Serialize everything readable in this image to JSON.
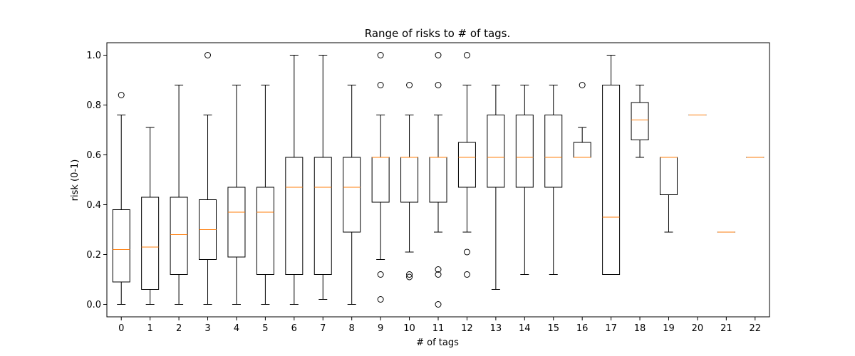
{
  "chart_data": {
    "type": "box",
    "title": "Range of risks to # of tags.",
    "xlabel": "# of tags",
    "ylabel": "risk (0-1)",
    "categories": [
      "0",
      "1",
      "2",
      "3",
      "4",
      "5",
      "6",
      "7",
      "8",
      "9",
      "10",
      "11",
      "12",
      "13",
      "14",
      "15",
      "16",
      "17",
      "18",
      "19",
      "20",
      "21",
      "22"
    ],
    "ylim": [
      -0.05,
      1.05
    ],
    "yticks": [
      "0.0",
      "0.2",
      "0.4",
      "0.6",
      "0.8",
      "1.0"
    ],
    "grid": false,
    "colors": {
      "box": "#000000",
      "median": "#ff7f0e",
      "background": "#ffffff"
    },
    "boxes": [
      {
        "whislo": 0.0,
        "q1": 0.09,
        "med": 0.22,
        "q3": 0.38,
        "whishi": 0.76,
        "fliers": [
          0.84
        ]
      },
      {
        "whislo": 0.0,
        "q1": 0.06,
        "med": 0.23,
        "q3": 0.43,
        "whishi": 0.71,
        "fliers": []
      },
      {
        "whislo": 0.0,
        "q1": 0.12,
        "med": 0.28,
        "q3": 0.43,
        "whishi": 0.88,
        "fliers": []
      },
      {
        "whislo": 0.0,
        "q1": 0.18,
        "med": 0.3,
        "q3": 0.42,
        "whishi": 0.76,
        "fliers": [
          1.0
        ]
      },
      {
        "whislo": 0.0,
        "q1": 0.19,
        "med": 0.37,
        "q3": 0.47,
        "whishi": 0.88,
        "fliers": []
      },
      {
        "whislo": 0.0,
        "q1": 0.12,
        "med": 0.37,
        "q3": 0.47,
        "whishi": 0.88,
        "fliers": []
      },
      {
        "whislo": 0.0,
        "q1": 0.12,
        "med": 0.47,
        "q3": 0.59,
        "whishi": 1.0,
        "fliers": []
      },
      {
        "whislo": 0.02,
        "q1": 0.12,
        "med": 0.47,
        "q3": 0.59,
        "whishi": 1.0,
        "fliers": []
      },
      {
        "whislo": 0.0,
        "q1": 0.29,
        "med": 0.47,
        "q3": 0.59,
        "whishi": 0.88,
        "fliers": []
      },
      {
        "whislo": 0.18,
        "q1": 0.41,
        "med": 0.59,
        "q3": 0.59,
        "whishi": 0.76,
        "fliers": [
          0.02,
          0.12,
          0.88,
          1.0
        ]
      },
      {
        "whislo": 0.21,
        "q1": 0.41,
        "med": 0.59,
        "q3": 0.59,
        "whishi": 0.76,
        "fliers": [
          0.11,
          0.12,
          0.88
        ]
      },
      {
        "whislo": 0.29,
        "q1": 0.41,
        "med": 0.59,
        "q3": 0.59,
        "whishi": 0.76,
        "fliers": [
          0.0,
          0.12,
          0.14,
          0.88,
          1.0
        ]
      },
      {
        "whislo": 0.29,
        "q1": 0.47,
        "med": 0.59,
        "q3": 0.65,
        "whishi": 0.88,
        "fliers": [
          0.12,
          0.21,
          1.0
        ]
      },
      {
        "whislo": 0.06,
        "q1": 0.47,
        "med": 0.59,
        "q3": 0.76,
        "whishi": 0.88,
        "fliers": []
      },
      {
        "whislo": 0.12,
        "q1": 0.47,
        "med": 0.59,
        "q3": 0.76,
        "whishi": 0.88,
        "fliers": []
      },
      {
        "whislo": 0.12,
        "q1": 0.47,
        "med": 0.59,
        "q3": 0.76,
        "whishi": 0.88,
        "fliers": []
      },
      {
        "whislo": 0.59,
        "q1": 0.59,
        "med": 0.59,
        "q3": 0.65,
        "whishi": 0.71,
        "fliers": [
          0.88
        ]
      },
      {
        "whislo": 0.12,
        "q1": 0.12,
        "med": 0.35,
        "q3": 0.88,
        "whishi": 1.0,
        "fliers": []
      },
      {
        "whislo": 0.59,
        "q1": 0.66,
        "med": 0.74,
        "q3": 0.81,
        "whishi": 0.88,
        "fliers": []
      },
      {
        "whislo": 0.29,
        "q1": 0.44,
        "med": 0.59,
        "q3": 0.59,
        "whishi": 0.59,
        "fliers": []
      },
      {
        "whislo": 0.76,
        "q1": 0.76,
        "med": 0.76,
        "q3": 0.76,
        "whishi": 0.76,
        "fliers": []
      },
      {
        "whislo": 0.29,
        "q1": 0.29,
        "med": 0.29,
        "q3": 0.29,
        "whishi": 0.29,
        "fliers": []
      },
      {
        "whislo": 0.59,
        "q1": 0.59,
        "med": 0.59,
        "q3": 0.59,
        "whishi": 0.59,
        "fliers": []
      }
    ]
  }
}
